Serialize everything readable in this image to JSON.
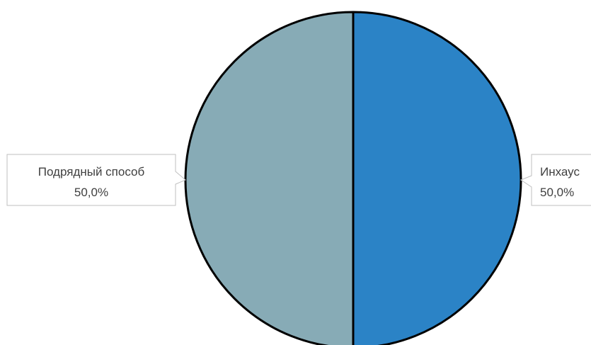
{
  "chart_data": {
    "type": "pie",
    "title": "",
    "slices": [
      {
        "label": "Инхаус",
        "value": 50.0,
        "display": "50,0%",
        "color": "#2b83c6"
      },
      {
        "label": "Подрядный способ",
        "value": 50.0,
        "display": "50,0%",
        "color": "#87abb6"
      }
    ],
    "start_angle_deg": 0,
    "direction": "clockwise",
    "outline_color": "#000000",
    "legend": "none",
    "data_labels": "callouts"
  }
}
